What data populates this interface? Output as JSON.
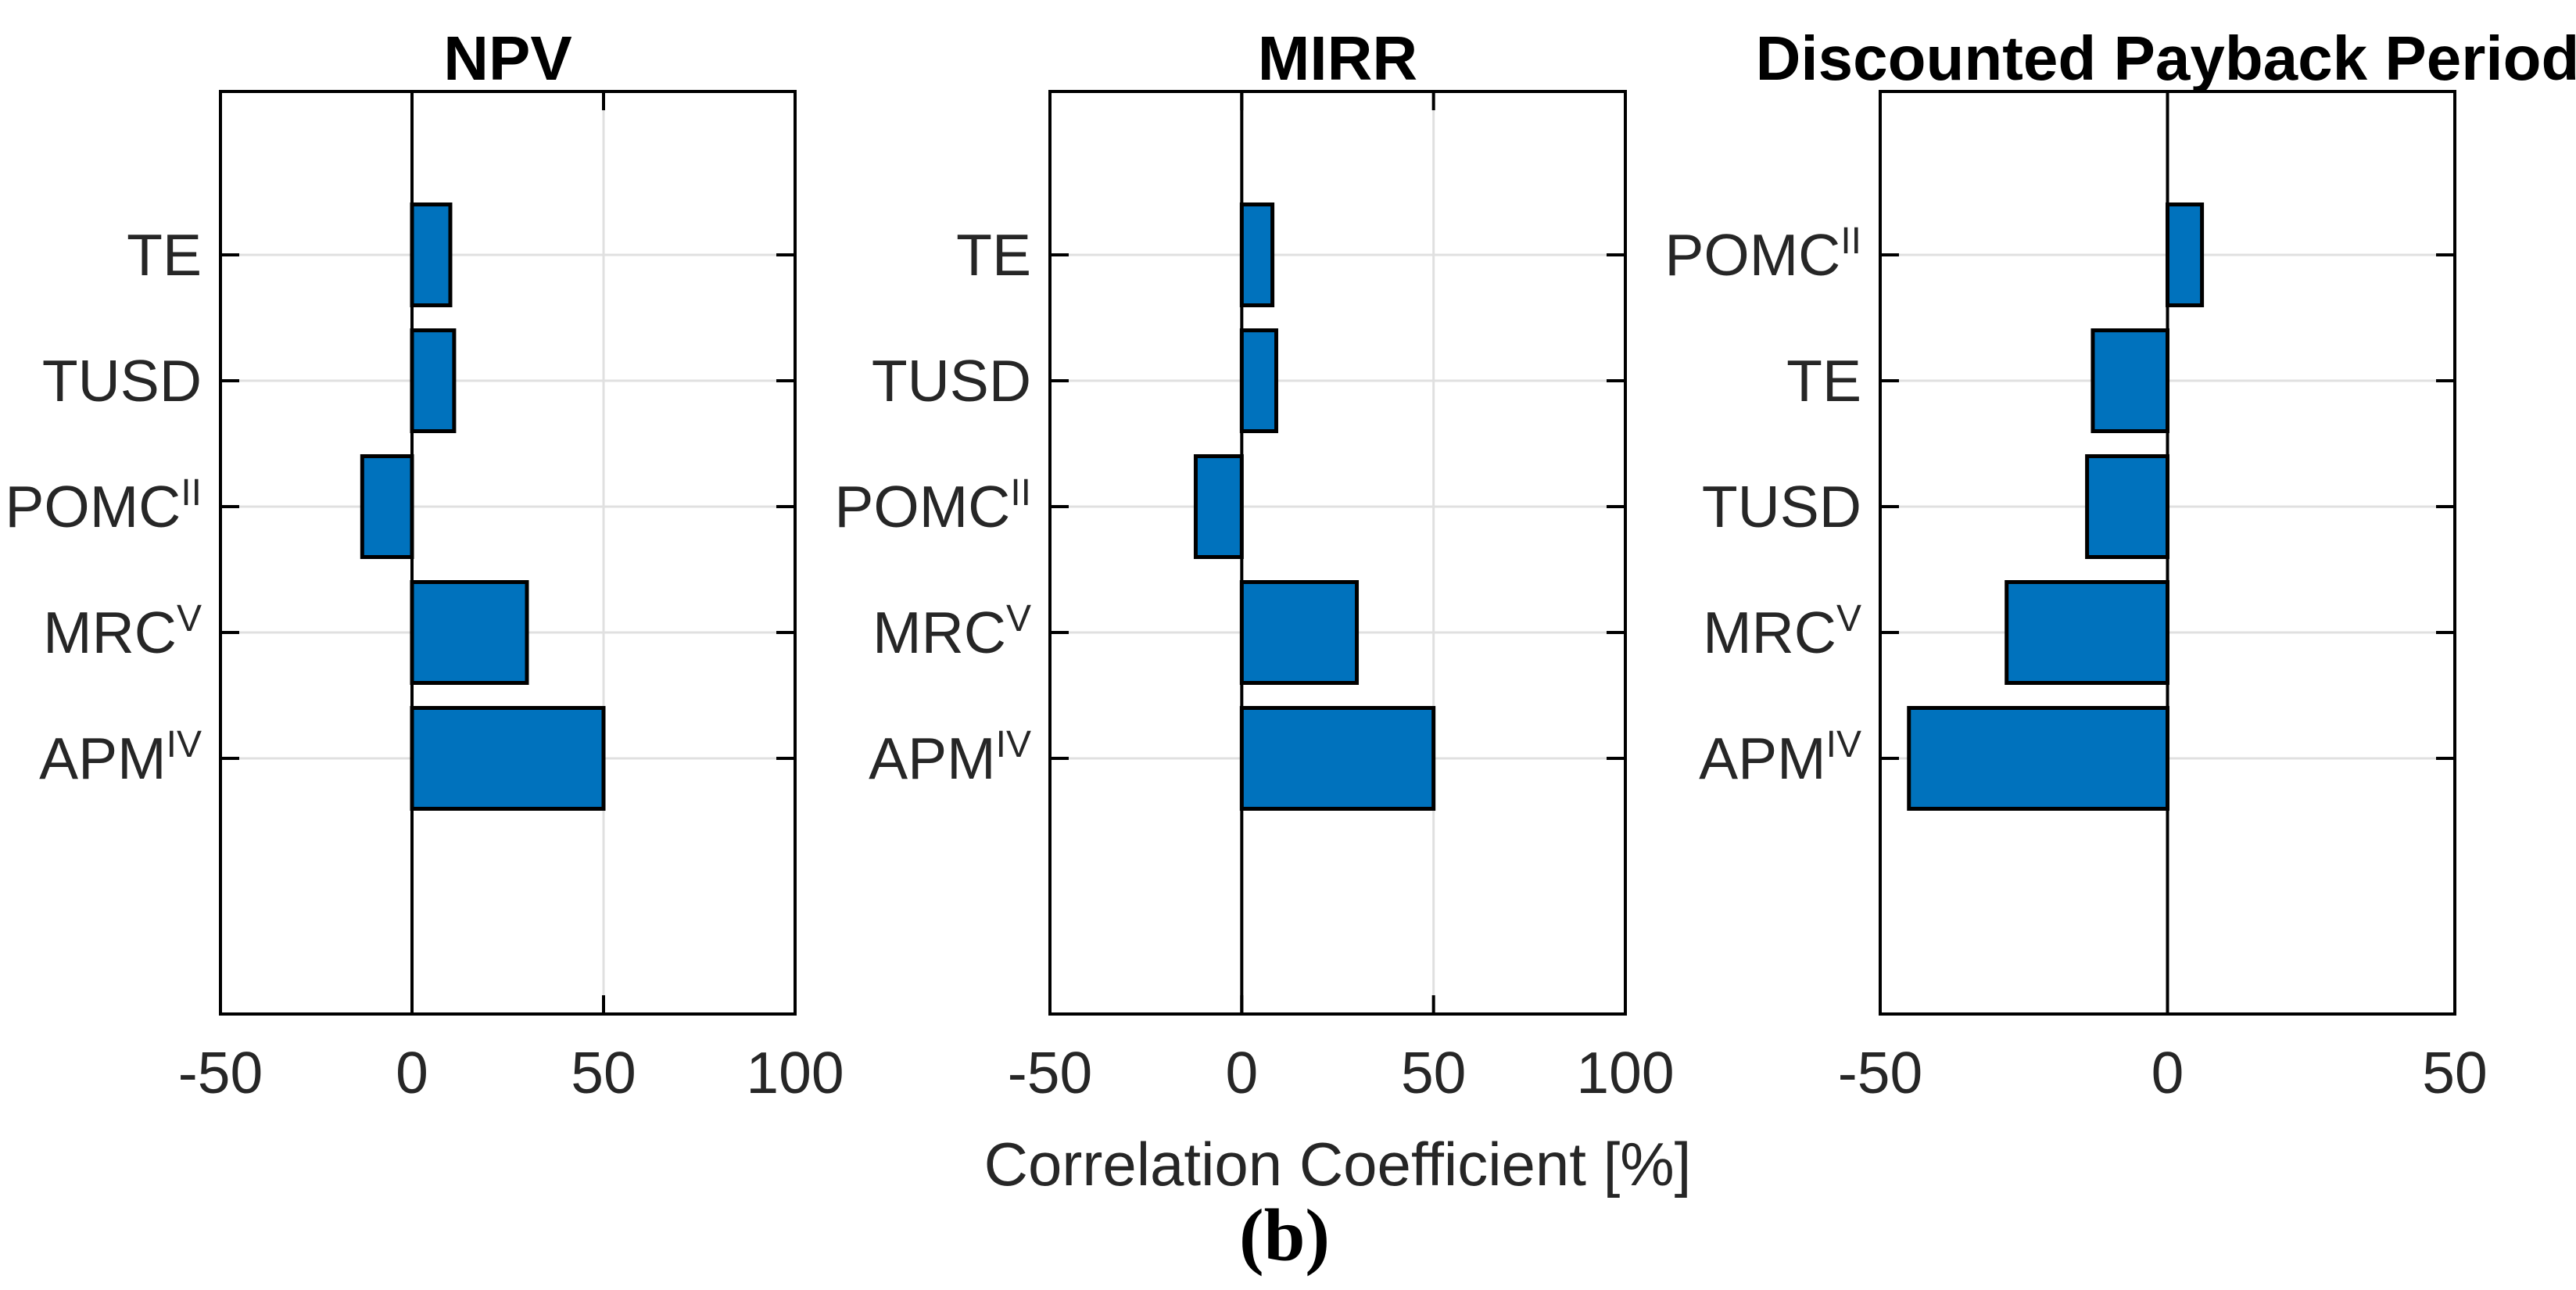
{
  "figure": {
    "caption": "(b)",
    "xlabel": "Correlation Coefficient [%]",
    "colors": {
      "bar_fill": "#0072BD",
      "bar_edge": "#000000",
      "grid": "#E0E0E0",
      "axis": "#000000",
      "zero_line": "#000000",
      "tick_label": "#262626",
      "title": "#000000",
      "background": "#FFFFFF"
    }
  },
  "chart_data": [
    {
      "type": "bar",
      "orientation": "horizontal",
      "title": "NPV",
      "categories": [
        {
          "label": "TE",
          "sup": ""
        },
        {
          "label": "TUSD",
          "sup": ""
        },
        {
          "label": "POMC",
          "sup": "II"
        },
        {
          "label": "MRC",
          "sup": "V"
        },
        {
          "label": "APM",
          "sup": "IV"
        }
      ],
      "values": [
        10,
        11,
        -13,
        30,
        50
      ],
      "xlim": [
        -50,
        100
      ],
      "xticks": [
        -50,
        0,
        50,
        100
      ],
      "grid": true,
      "legend": "none"
    },
    {
      "type": "bar",
      "orientation": "horizontal",
      "title": "MIRR",
      "categories": [
        {
          "label": "TE",
          "sup": ""
        },
        {
          "label": "TUSD",
          "sup": ""
        },
        {
          "label": "POMC",
          "sup": "II"
        },
        {
          "label": "MRC",
          "sup": "V"
        },
        {
          "label": "APM",
          "sup": "IV"
        }
      ],
      "values": [
        8,
        9,
        -12,
        30,
        50
      ],
      "xlim": [
        -50,
        100
      ],
      "xticks": [
        -50,
        0,
        50,
        100
      ],
      "grid": true,
      "legend": "none"
    },
    {
      "type": "bar",
      "orientation": "horizontal",
      "title": "Discounted Payback Period",
      "categories": [
        {
          "label": "POMC",
          "sup": "II"
        },
        {
          "label": "TE",
          "sup": ""
        },
        {
          "label": "TUSD",
          "sup": ""
        },
        {
          "label": "MRC",
          "sup": "V"
        },
        {
          "label": "APM",
          "sup": "IV"
        }
      ],
      "values": [
        6,
        -13,
        -14,
        -28,
        -45
      ],
      "xlim": [
        -50,
        50
      ],
      "xticks": [
        -50,
        0,
        50
      ],
      "grid": true,
      "legend": "none"
    }
  ]
}
